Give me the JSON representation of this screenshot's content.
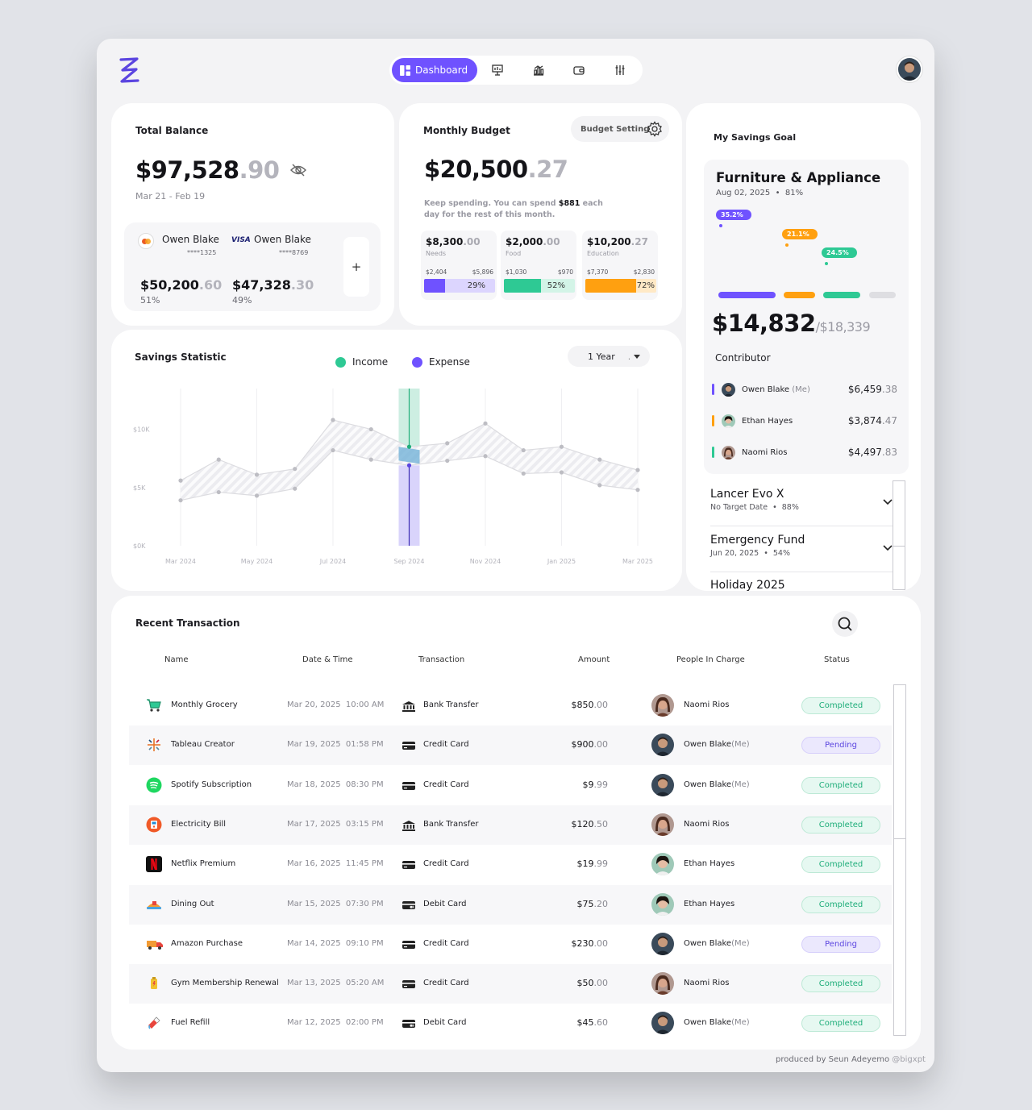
{
  "nav": {
    "active_label": "Dashboard",
    "icons": [
      "grid-icon",
      "board-icon",
      "bar-chart-icon",
      "wallet-icon",
      "sliders-icon"
    ]
  },
  "total_balance": {
    "title": "Total Balance",
    "amount_main": "$97,528",
    "amount_dec": ".90",
    "date_range": "Mar 21 - Feb 19",
    "accounts": [
      {
        "brand": "mastercard",
        "name": "Owen Blake",
        "number": "****1325",
        "amount_main": "$50,200",
        "amount_dec": ".60",
        "pct": "51%"
      },
      {
        "brand": "visa",
        "name": "Owen Blake",
        "number": "****8769",
        "amount_main": "$47,328",
        "amount_dec": ".30",
        "pct": "49%"
      }
    ],
    "add_label": "+"
  },
  "budget": {
    "title": "Monthly Budget",
    "setting_label": "Budget Setting",
    "amount_main": "$20,500",
    "amount_dec": ".27",
    "note_pre": "Keep spending. You can spend ",
    "note_amount": "$881",
    "note_post": " each day for the rest of this month.",
    "categories": [
      {
        "amount_main": "$8,300",
        "amount_dec": ".00",
        "name": "Needs",
        "lo": "$2,404",
        "hi": "$5,896",
        "pct": "29%",
        "fill": 0.29,
        "color": "#6f52ff",
        "track": "#dcd5fe"
      },
      {
        "amount_main": "$2,000",
        "amount_dec": ".00",
        "name": "Food",
        "lo": "$1,030",
        "hi": "$970",
        "pct": "52%",
        "fill": 0.52,
        "color": "#2ec994",
        "track": "#d3f4e7"
      },
      {
        "amount_main": "$10,200",
        "amount_dec": ".27",
        "name": "Education",
        "lo": "$7,370",
        "hi": "$2,830",
        "pct": "72%",
        "fill": 0.72,
        "color": "#ffa010",
        "track": "#ffe9c6"
      }
    ]
  },
  "savings_goal": {
    "title": "My Savings Goal",
    "goal_name": "Furniture & Appliance",
    "goal_date": "Aug 02, 2025",
    "goal_pct": "81%",
    "pills": [
      {
        "label": "35.2%",
        "color": "#6f52ff"
      },
      {
        "label": "21.1%",
        "color": "#ffa010"
      },
      {
        "label": "24.5%",
        "color": "#2ec994"
      }
    ],
    "amount": "$14,832",
    "target": "/$18,339",
    "contributor_label": "Contributor",
    "contributors": [
      {
        "name": "Owen Blake",
        "me": " (Me)",
        "amount_main": "$6,459",
        "amount_dec": ".38",
        "color": "#6f52ff"
      },
      {
        "name": "Ethan Hayes",
        "me": "",
        "amount_main": "$3,874",
        "amount_dec": ".47",
        "color": "#ffa010"
      },
      {
        "name": "Naomi Rios",
        "me": "",
        "amount_main": "$4,497",
        "amount_dec": ".83",
        "color": "#2ec994"
      }
    ],
    "other_goals": [
      {
        "name": "Lancer Evo X",
        "date": "No Target Date",
        "pct": "88%"
      },
      {
        "name": "Emergency Fund",
        "date": "Jun 20, 2025",
        "pct": "54%"
      },
      {
        "name": "Holiday 2025",
        "date": "",
        "pct": ""
      }
    ]
  },
  "savings_statistic": {
    "title": "Savings Statistic",
    "legend_income": "Income",
    "legend_expense": "Expense",
    "income_color": "#2ec994",
    "expense_color": "#6f52ff",
    "period_label": "1 Year",
    "period_suffix": "."
  },
  "chart_data": {
    "type": "line",
    "x": [
      "Mar 2024",
      "Apr 2024",
      "May 2024",
      "Jun 2024",
      "Jul 2024",
      "Aug 2024",
      "Sep 2024",
      "Oct 2024",
      "Nov 2024",
      "Dec 2024",
      "Jan 2025",
      "Feb 2025",
      "Mar 2025"
    ],
    "xticks": [
      "Mar 2024",
      "May 2024",
      "Jul 2024",
      "Sep 2024",
      "Nov 2024",
      "Jan 2025",
      "Mar 2025"
    ],
    "yticks": [
      "$0K",
      "$5K",
      "$10K"
    ],
    "ylim": [
      0,
      13500
    ],
    "highlight": "Sep 2024",
    "series": [
      {
        "name": "Income",
        "values": [
          5600,
          7400,
          6100,
          6600,
          10800,
          10000,
          8500,
          8800,
          10500,
          8200,
          8500,
          7400,
          6500
        ]
      },
      {
        "name": "Expense",
        "values": [
          3900,
          4600,
          4300,
          4900,
          8200,
          7400,
          6900,
          7300,
          7700,
          6200,
          6300,
          5200,
          4800
        ]
      }
    ]
  },
  "transactions": {
    "title": "Recent Transaction",
    "headers": {
      "name": "Name",
      "date": "Date & Time",
      "transaction": "Transaction",
      "amount": "Amount",
      "people": "People In Charge",
      "status": "Status"
    },
    "rows": [
      {
        "icon": "cart-icon",
        "name": "Monthly Grocery",
        "date": "Mar 20, 2025  10:00 AM",
        "tx_icon": "bank-icon",
        "tx": "Bank Transfer",
        "amount_main": "$850",
        "amount_dec": ".00",
        "person": "Naomi Rios",
        "me": "",
        "status": "Completed",
        "avatar": "naomi"
      },
      {
        "icon": "tableau-icon",
        "name": "Tableau Creator",
        "date": "Mar 19, 2025  01:58 PM",
        "tx_icon": "card-icon",
        "tx": "Credit Card",
        "amount_main": "$900",
        "amount_dec": ".00",
        "person": "Owen Blake",
        "me": "(Me)",
        "status": "Pending",
        "avatar": "owen"
      },
      {
        "icon": "spotify-icon",
        "name": "Spotify Subscription",
        "date": "Mar 18, 2025  08:30 PM",
        "tx_icon": "card-icon",
        "tx": "Credit Card",
        "amount_main": "$9",
        "amount_dec": ".99",
        "person": "Owen Blake",
        "me": "(Me)",
        "status": "Completed",
        "avatar": "owen"
      },
      {
        "icon": "electricity-icon",
        "name": "Electricity Bill",
        "date": "Mar 17, 2025  03:15 PM",
        "tx_icon": "bank-icon",
        "tx": "Bank Transfer",
        "amount_main": "$120",
        "amount_dec": ".50",
        "person": "Naomi Rios",
        "me": "",
        "status": "Completed",
        "avatar": "naomi"
      },
      {
        "icon": "netflix-icon",
        "name": "Netflix Premium",
        "date": "Mar 16, 2025  11:45 PM",
        "tx_icon": "card-icon",
        "tx": "Credit Card",
        "amount_main": "$19",
        "amount_dec": ".99",
        "person": "Ethan Hayes",
        "me": "",
        "status": "Completed",
        "avatar": "ethan"
      },
      {
        "icon": "dining-icon",
        "name": "Dining Out",
        "date": "Mar 15, 2025  07:30 PM",
        "tx_icon": "debit-card-icon",
        "tx": "Debit Card",
        "amount_main": "$75",
        "amount_dec": ".20",
        "person": "Ethan Hayes",
        "me": "",
        "status": "Completed",
        "avatar": "ethan"
      },
      {
        "icon": "truck-icon",
        "name": "Amazon Purchase",
        "date": "Mar 14, 2025  09:10 PM",
        "tx_icon": "card-icon",
        "tx": "Credit Card",
        "amount_main": "$230",
        "amount_dec": ".00",
        "person": "Owen Blake",
        "me": "(Me)",
        "status": "Pending",
        "avatar": "owen"
      },
      {
        "icon": "gym-icon",
        "name": "Gym Membership Renewal",
        "date": "Mar 13, 2025  05:20 AM",
        "tx_icon": "card-icon",
        "tx": "Credit Card",
        "amount_main": "$50",
        "amount_dec": ".00",
        "person": "Naomi Rios",
        "me": "",
        "status": "Completed",
        "avatar": "naomi"
      },
      {
        "icon": "fuel-icon",
        "name": "Fuel Refill",
        "date": "Mar 12, 2025  02:00 PM",
        "tx_icon": "debit-card-icon",
        "tx": "Debit Card",
        "amount_main": "$45",
        "amount_dec": ".60",
        "person": "Owen Blake",
        "me": "(Me)",
        "status": "Completed",
        "avatar": "owen"
      }
    ]
  },
  "footer": {
    "credit": "produced by Seun Adeyemo ",
    "handle": "@bigxpt"
  }
}
